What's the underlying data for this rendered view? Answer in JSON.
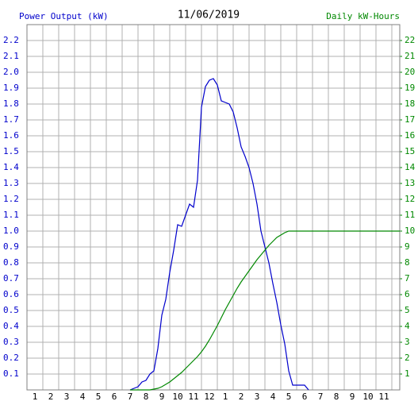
{
  "chart_data": {
    "type": "line",
    "title": "11/06/2019",
    "y_label": "Power Output (kW)",
    "y2_label": "Daily kW-Hours",
    "x": [
      6.5,
      6.75,
      7,
      7.25,
      7.5,
      7.75,
      8,
      8.25,
      8.5,
      8.75,
      9,
      9.25,
      9.5,
      9.75,
      10,
      10.25,
      10.5,
      10.75,
      11,
      11.25,
      11.5,
      11.75,
      12,
      12.25,
      12.5,
      12.75,
      13,
      13.25,
      13.5,
      13.75,
      14,
      14.25,
      14.5,
      14.75,
      15,
      15.25,
      15.5,
      15.75,
      16,
      16.25,
      16.5,
      16.75,
      17,
      17.25,
      17.5,
      17.75,
      23.5
    ],
    "series": [
      {
        "name": "Power Output (kW)",
        "color": "#0000cc",
        "values": [
          0,
          0.01,
          0.02,
          0.05,
          0.06,
          0.1,
          0.12,
          0.26,
          0.47,
          0.57,
          0.74,
          0.88,
          1.04,
          1.03,
          1.1,
          1.17,
          1.15,
          1.32,
          1.78,
          1.91,
          1.95,
          1.96,
          1.92,
          1.82,
          1.81,
          1.8,
          1.75,
          1.65,
          1.53,
          1.47,
          1.4,
          1.3,
          1.17,
          1.0,
          0.9,
          0.8,
          0.67,
          0.55,
          0.41,
          0.29,
          0.12,
          0.03,
          0.03,
          0.03,
          0.03,
          0,
          null
        ]
      },
      {
        "name": "Daily kW-Hours",
        "color": "#008800",
        "axis": "y2",
        "values": [
          0,
          0,
          0,
          0,
          0,
          0,
          0.05,
          0.1,
          0.2,
          0.35,
          0.5,
          0.7,
          0.9,
          1.1,
          1.35,
          1.6,
          1.85,
          2.1,
          2.4,
          2.75,
          3.15,
          3.6,
          4.05,
          4.55,
          5.05,
          5.5,
          5.95,
          6.4,
          6.8,
          7.15,
          7.5,
          7.85,
          8.2,
          8.5,
          8.8,
          9.1,
          9.35,
          9.6,
          9.75,
          9.9,
          10,
          10,
          10,
          10,
          10,
          10,
          10
        ]
      }
    ],
    "xlim": [
      0,
      23.5
    ],
    "xticks": [
      1,
      2,
      3,
      4,
      5,
      6,
      7,
      8,
      9,
      10,
      11,
      12,
      {
        "value": 13,
        "label": "1"
      },
      {
        "value": 14,
        "label": "2"
      },
      {
        "value": 15,
        "label": "3"
      },
      {
        "value": 16,
        "label": "4"
      },
      {
        "value": 17,
        "label": "5"
      },
      {
        "value": 18,
        "label": "6"
      },
      {
        "value": 19,
        "label": "7"
      },
      {
        "value": 20,
        "label": "8"
      },
      {
        "value": 21,
        "label": "9"
      },
      {
        "value": 22,
        "label": "10"
      },
      {
        "value": 23,
        "label": "11"
      }
    ],
    "ylim": [
      0,
      2.3
    ],
    "yticks": [
      0.1,
      0.2,
      0.3,
      0.4,
      0.5,
      0.6,
      0.7,
      0.8,
      0.9,
      {
        "value": 1,
        "label": "1.0"
      },
      1.1,
      1.2,
      1.3,
      1.4,
      1.5,
      1.6,
      1.7,
      1.8,
      1.9,
      {
        "value": 2,
        "label": "2.0"
      },
      2.1,
      2.2
    ],
    "y2lim": [
      0,
      23
    ],
    "y2ticks": [
      1,
      2,
      3,
      4,
      5,
      6,
      7,
      8,
      9,
      10,
      11,
      12,
      13,
      14,
      15,
      16,
      17,
      18,
      19,
      20,
      21,
      22
    ],
    "grid": true
  }
}
